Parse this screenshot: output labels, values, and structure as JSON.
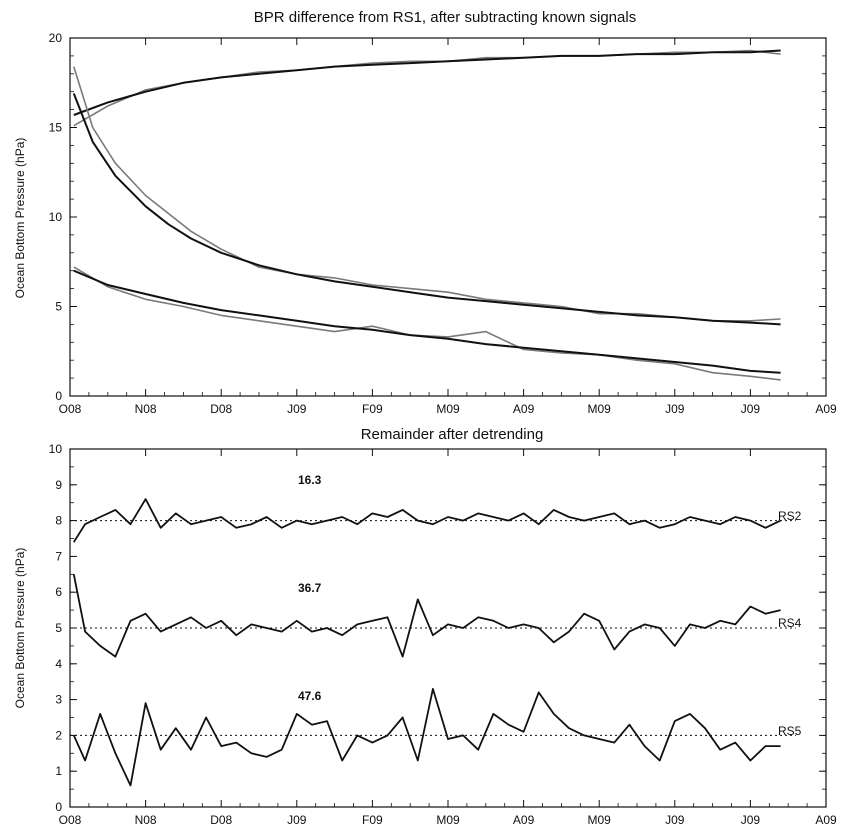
{
  "chart_data": [
    {
      "type": "line",
      "title": "BPR difference from RS1, after subtracting known signals",
      "xlabel": "",
      "ylabel": "Ocean Bottom Pressure (hPa)",
      "x_tick_labels": [
        "O08",
        "N08",
        "D08",
        "J09",
        "F09",
        "M09",
        "A09",
        "M09",
        "J09",
        "J09",
        "A09"
      ],
      "xlim": [
        0,
        10
      ],
      "ylim": [
        0,
        20
      ],
      "y_ticks": [
        0,
        5,
        10,
        15,
        20
      ],
      "grid": false,
      "series": [
        {
          "kind": "raw",
          "x": [
            0.05,
            0.5,
            1,
            1.5,
            2,
            2.5,
            3,
            3.5,
            4,
            4.5,
            5,
            5.5,
            6,
            6.5,
            7,
            7.5,
            8,
            8.5,
            9,
            9.4
          ],
          "y": [
            15.1,
            16.2,
            17.1,
            17.5,
            17.8,
            18.1,
            18.2,
            18.4,
            18.6,
            18.7,
            18.7,
            18.9,
            18.9,
            19.0,
            19.0,
            19.1,
            19.2,
            19.2,
            19.3,
            19.1
          ]
        },
        {
          "kind": "fit",
          "x": [
            0.05,
            0.5,
            1,
            1.5,
            2,
            2.5,
            3,
            3.5,
            4,
            4.5,
            5,
            5.5,
            6,
            6.5,
            7,
            7.5,
            8,
            8.5,
            9,
            9.4
          ],
          "y": [
            15.7,
            16.4,
            17.0,
            17.5,
            17.8,
            18.0,
            18.2,
            18.4,
            18.5,
            18.6,
            18.7,
            18.8,
            18.9,
            19.0,
            19.0,
            19.1,
            19.1,
            19.2,
            19.2,
            19.3
          ]
        },
        {
          "kind": "raw",
          "x": [
            0.05,
            0.3,
            0.6,
            1,
            1.3,
            1.6,
            2,
            2.5,
            3,
            3.5,
            4,
            4.5,
            5,
            5.5,
            6,
            6.5,
            7,
            7.5,
            8,
            8.5,
            9,
            9.4
          ],
          "y": [
            18.4,
            15.0,
            13.0,
            11.2,
            10.2,
            9.2,
            8.2,
            7.2,
            6.8,
            6.6,
            6.2,
            6.0,
            5.8,
            5.4,
            5.2,
            5.0,
            4.6,
            4.6,
            4.4,
            4.2,
            4.2,
            4.3
          ]
        },
        {
          "kind": "fit",
          "x": [
            0.05,
            0.3,
            0.6,
            1,
            1.3,
            1.6,
            2,
            2.5,
            3,
            3.5,
            4,
            4.5,
            5,
            5.5,
            6,
            6.5,
            7,
            7.5,
            8,
            8.5,
            9,
            9.4
          ],
          "y": [
            16.9,
            14.2,
            12.3,
            10.6,
            9.6,
            8.8,
            8.0,
            7.3,
            6.8,
            6.4,
            6.1,
            5.8,
            5.5,
            5.3,
            5.1,
            4.9,
            4.7,
            4.5,
            4.4,
            4.2,
            4.1,
            4.0
          ]
        },
        {
          "kind": "raw",
          "x": [
            0.05,
            0.5,
            1,
            1.5,
            2,
            2.5,
            3,
            3.5,
            4,
            4.5,
            5,
            5.5,
            6,
            6.5,
            7,
            7.5,
            8,
            8.5,
            9,
            9.4
          ],
          "y": [
            7.2,
            6.1,
            5.4,
            5.0,
            4.5,
            4.2,
            3.9,
            3.6,
            3.9,
            3.4,
            3.3,
            3.6,
            2.6,
            2.4,
            2.3,
            2.0,
            1.8,
            1.3,
            1.1,
            0.9
          ]
        },
        {
          "kind": "fit",
          "x": [
            0.05,
            0.5,
            1,
            1.5,
            2,
            2.5,
            3,
            3.5,
            4,
            4.5,
            5,
            5.5,
            6,
            6.5,
            7,
            7.5,
            8,
            8.5,
            9,
            9.4
          ],
          "y": [
            7.0,
            6.2,
            5.7,
            5.2,
            4.8,
            4.5,
            4.2,
            3.9,
            3.7,
            3.4,
            3.2,
            2.9,
            2.7,
            2.5,
            2.3,
            2.1,
            1.9,
            1.7,
            1.4,
            1.3
          ]
        }
      ]
    },
    {
      "type": "line",
      "title": "Remainder after detrending",
      "xlabel": "",
      "ylabel": "Ocean Bottom Pressure (hPa)",
      "x_tick_labels": [
        "O08",
        "N08",
        "D08",
        "J09",
        "F09",
        "M09",
        "A09",
        "M09",
        "J09",
        "J09",
        "A09"
      ],
      "xlim": [
        0,
        10
      ],
      "ylim": [
        0,
        10
      ],
      "y_ticks": [
        0,
        1,
        2,
        3,
        4,
        5,
        6,
        7,
        8,
        9,
        10
      ],
      "grid": false,
      "reference_lines": [
        8,
        5,
        2
      ],
      "series": [
        {
          "name": "RS2",
          "annotation": "16.3",
          "x": [
            0.05,
            0.2,
            0.4,
            0.6,
            0.8,
            1.0,
            1.2,
            1.4,
            1.6,
            1.8,
            2.0,
            2.2,
            2.4,
            2.6,
            2.8,
            3.0,
            3.2,
            3.4,
            3.6,
            3.8,
            4.0,
            4.2,
            4.4,
            4.6,
            4.8,
            5.0,
            5.2,
            5.4,
            5.6,
            5.8,
            6.0,
            6.2,
            6.4,
            6.6,
            6.8,
            7.0,
            7.2,
            7.4,
            7.6,
            7.8,
            8.0,
            8.2,
            8.4,
            8.6,
            8.8,
            9.0,
            9.2,
            9.4
          ],
          "y": [
            7.4,
            7.9,
            8.1,
            8.3,
            7.9,
            8.6,
            7.8,
            8.2,
            7.9,
            8.0,
            8.1,
            7.8,
            7.9,
            8.1,
            7.8,
            8.0,
            7.9,
            8.0,
            8.1,
            7.9,
            8.2,
            8.1,
            8.3,
            8.0,
            7.9,
            8.1,
            8.0,
            8.2,
            8.1,
            8.0,
            8.2,
            7.9,
            8.3,
            8.1,
            8.0,
            8.1,
            8.2,
            7.9,
            8.0,
            7.8,
            7.9,
            8.1,
            8.0,
            7.9,
            8.1,
            8.0,
            7.8,
            8.0
          ]
        },
        {
          "name": "RS4",
          "annotation": "36.7",
          "x": [
            0.05,
            0.2,
            0.4,
            0.6,
            0.8,
            1.0,
            1.2,
            1.4,
            1.6,
            1.8,
            2.0,
            2.2,
            2.4,
            2.6,
            2.8,
            3.0,
            3.2,
            3.4,
            3.6,
            3.8,
            4.0,
            4.2,
            4.4,
            4.6,
            4.8,
            5.0,
            5.2,
            5.4,
            5.6,
            5.8,
            6.0,
            6.2,
            6.4,
            6.6,
            6.8,
            7.0,
            7.2,
            7.4,
            7.6,
            7.8,
            8.0,
            8.2,
            8.4,
            8.6,
            8.8,
            9.0,
            9.2,
            9.4
          ],
          "y": [
            6.5,
            4.9,
            4.5,
            4.2,
            5.2,
            5.4,
            4.9,
            5.1,
            5.3,
            5.0,
            5.2,
            4.8,
            5.1,
            5.0,
            4.9,
            5.2,
            4.9,
            5.0,
            4.8,
            5.1,
            5.2,
            5.3,
            4.2,
            5.8,
            4.8,
            5.1,
            5.0,
            5.3,
            5.2,
            5.0,
            5.1,
            5.0,
            4.6,
            4.9,
            5.4,
            5.2,
            4.4,
            4.9,
            5.1,
            5.0,
            4.5,
            5.1,
            5.0,
            5.2,
            5.1,
            5.6,
            5.4,
            5.5
          ]
        },
        {
          "name": "RS5",
          "annotation": "47.6",
          "x": [
            0.05,
            0.2,
            0.4,
            0.6,
            0.8,
            1.0,
            1.2,
            1.4,
            1.6,
            1.8,
            2.0,
            2.2,
            2.4,
            2.6,
            2.8,
            3.0,
            3.2,
            3.4,
            3.6,
            3.8,
            4.0,
            4.2,
            4.4,
            4.6,
            4.8,
            5.0,
            5.2,
            5.4,
            5.6,
            5.8,
            6.0,
            6.2,
            6.4,
            6.6,
            6.8,
            7.0,
            7.2,
            7.4,
            7.6,
            7.8,
            8.0,
            8.2,
            8.4,
            8.6,
            8.8,
            9.0,
            9.2,
            9.4
          ],
          "y": [
            2.0,
            1.3,
            2.6,
            1.5,
            0.6,
            2.9,
            1.6,
            2.2,
            1.6,
            2.5,
            1.7,
            1.8,
            1.5,
            1.4,
            1.6,
            2.6,
            2.3,
            2.4,
            1.3,
            2.0,
            1.8,
            2.0,
            2.5,
            1.3,
            3.3,
            1.9,
            2.0,
            1.6,
            2.6,
            2.3,
            2.1,
            3.2,
            2.6,
            2.2,
            2.0,
            1.9,
            1.8,
            2.3,
            1.7,
            1.3,
            2.4,
            2.6,
            2.2,
            1.6,
            1.8,
            1.3,
            1.7,
            1.7
          ]
        }
      ]
    }
  ]
}
